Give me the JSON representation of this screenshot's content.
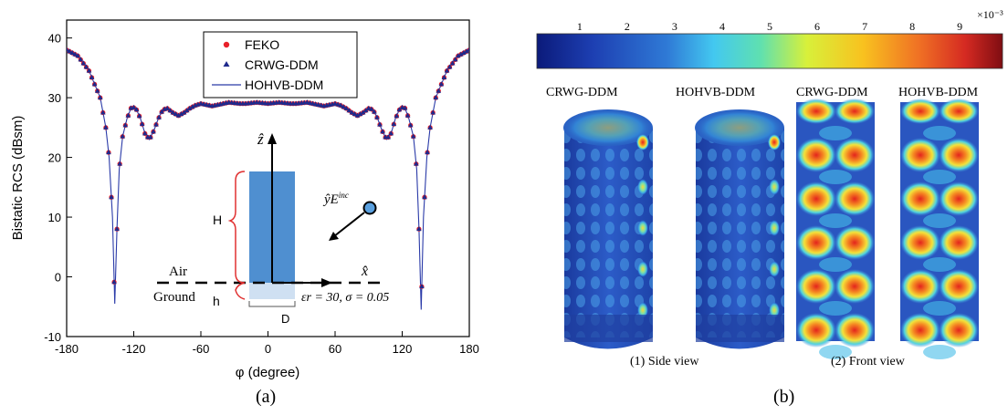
{
  "chart_data": [
    {
      "type": "line",
      "xlabel": "φ (degree)",
      "ylabel": "Bistatic RCS (dBsm)",
      "xlim": [
        -180,
        180
      ],
      "ylim": [
        -10,
        43
      ],
      "xticks": [
        "-180",
        "-120",
        "-60",
        "0",
        "60",
        "120",
        "180"
      ],
      "yticks": [
        "-10",
        "0",
        "10",
        "20",
        "30",
        "40"
      ],
      "legend_position": "top-center",
      "series": [
        {
          "name": "FEKO",
          "marker": "circle",
          "color": "#e8212a"
        },
        {
          "name": "CRWG-DDM",
          "marker": "triangle",
          "color": "#1f2a8c"
        },
        {
          "name": "HOHVB-DDM",
          "marker": "line",
          "color": "#2a3aa8"
        }
      ],
      "curve": {
        "x": [
          -180,
          -170,
          -160,
          -150,
          -145,
          -142,
          -139,
          -137,
          -135,
          -133,
          -130,
          -126,
          -122,
          -118,
          -114,
          -110,
          -106,
          -102,
          -98,
          -94,
          -90,
          -85,
          -80,
          -75,
          -70,
          -65,
          -60,
          -55,
          -50,
          -45,
          -40,
          -35,
          -30,
          -25,
          -20,
          -15,
          -10,
          -5,
          0,
          5,
          10,
          15,
          20,
          25,
          30,
          35,
          40,
          45,
          50,
          55,
          60,
          65,
          70,
          75,
          80,
          85,
          90,
          94,
          98,
          102,
          106,
          110,
          114,
          118,
          122,
          126,
          130,
          133,
          135,
          137,
          139,
          142,
          145,
          150,
          160,
          170,
          180
        ],
        "y": [
          38,
          37,
          34.5,
          30,
          25,
          20,
          10,
          -4.5,
          8,
          18,
          23.5,
          26.5,
          28.5,
          28.2,
          26.5,
          24,
          23,
          24.5,
          26.5,
          28,
          28.2,
          27.5,
          27,
          27.5,
          28.2,
          28.7,
          29,
          28.8,
          28.6,
          28.8,
          29,
          29.2,
          29.1,
          29,
          29,
          29.1,
          29.2,
          29.1,
          29,
          29.1,
          29.2,
          29.1,
          29,
          29,
          29.1,
          29.2,
          29,
          28.8,
          28.6,
          28.8,
          29,
          28.7,
          28.2,
          27.5,
          27,
          27.5,
          28.2,
          28,
          26.5,
          24.5,
          23,
          24,
          26.5,
          28.2,
          28.5,
          26.5,
          23.5,
          18,
          8,
          -5.5,
          10,
          20,
          25,
          30,
          34.5,
          37,
          38
        ]
      },
      "inset": {
        "labels": {
          "z": "ẑ",
          "x": "x̂",
          "inc": "ŷE",
          "inc_sup": "inc",
          "air": "Air",
          "ground": "Ground",
          "H": "H",
          "h": "h",
          "D": "D",
          "params": "εr = 30, σ = 0.05"
        }
      },
      "caption": "(a)"
    },
    {
      "type": "heatmap",
      "colorbar": {
        "ticks": [
          "1",
          "2",
          "3",
          "4",
          "5",
          "6",
          "7",
          "8",
          "9"
        ],
        "exponent": "×10⁻³"
      },
      "panels": [
        "CRWG-DDM",
        "HOHVB-DDM",
        "CRWG-DDM",
        "HOHVB-DDM"
      ],
      "view_labels": [
        "(1) Side view",
        "(2) Front view"
      ],
      "caption": "(b)"
    }
  ]
}
